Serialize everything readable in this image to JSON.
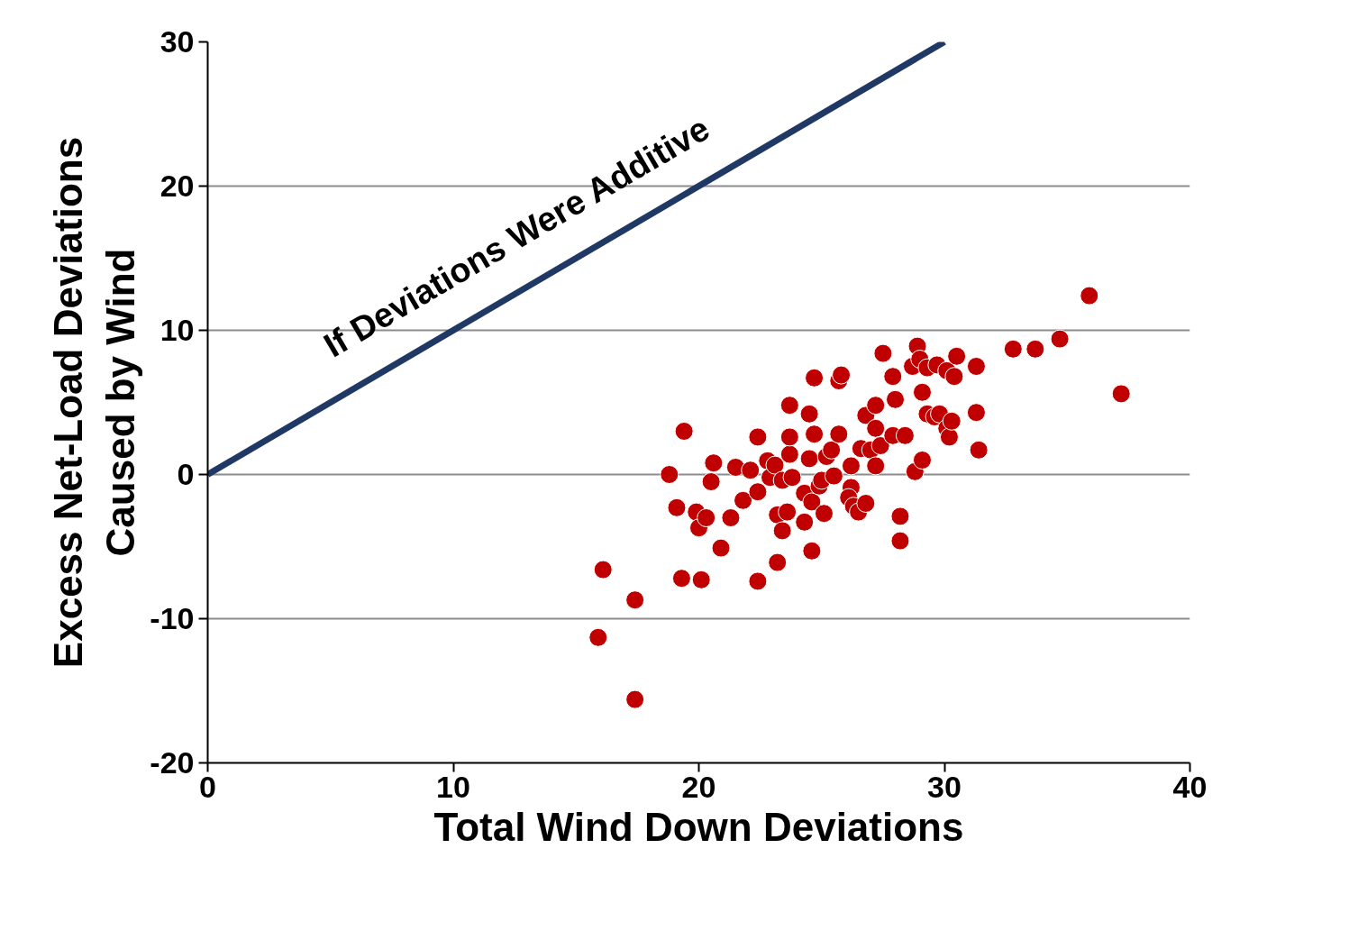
{
  "chart_data": {
    "type": "scatter",
    "xlabel": "Total Wind Down Deviations",
    "ylabel": "Excess Net-Load Deviations\nCaused by Wind",
    "xlim": [
      0,
      40
    ],
    "xticks": [
      0,
      10,
      20,
      30,
      40
    ],
    "ylim": [
      -20,
      30
    ],
    "yticks": [
      -20,
      -10,
      0,
      10,
      20,
      30
    ],
    "grid": "y",
    "annotations": [
      "If Deviations Were Additive"
    ],
    "series": [
      {
        "type": "line",
        "color": "#1f3864",
        "x": [
          0,
          30
        ],
        "values": [
          0,
          30
        ]
      },
      {
        "color": "#c00000",
        "marker": "circle",
        "x": [
          15.9,
          16.1,
          17.4,
          17.4,
          18.8,
          19.4,
          19.1,
          19.3,
          19.9,
          20.1,
          20.0,
          20.3,
          20.5,
          20.6,
          20.9,
          21.3,
          21.5,
          21.8,
          22.1,
          22.4,
          22.4,
          22.4,
          22.8,
          22.9,
          23.1,
          23.2,
          23.2,
          23.4,
          23.4,
          23.6,
          23.7,
          23.7,
          23.7,
          23.8,
          24.3,
          24.3,
          24.5,
          24.5,
          24.6,
          24.6,
          24.7,
          24.7,
          24.9,
          25.0,
          25.1,
          25.2,
          25.4,
          25.5,
          25.7,
          25.8,
          25.7,
          26.2,
          26.2,
          26.1,
          26.3,
          26.5,
          26.6,
          26.8,
          26.8,
          27.0,
          27.2,
          27.2,
          27.2,
          27.4,
          27.5,
          27.9,
          28.0,
          27.9,
          28.2,
          28.2,
          28.4,
          28.7,
          28.8,
          28.9,
          29.0,
          29.1,
          29.1,
          29.3,
          29.3,
          29.7,
          29.6,
          29.8,
          30.1,
          30.2,
          30.1,
          30.4,
          30.3,
          30.5,
          31.3,
          31.3,
          31.4,
          32.8,
          33.7,
          34.7,
          35.9,
          37.2
        ],
        "values": [
          -11.3,
          -6.6,
          -8.7,
          -15.6,
          0.0,
          3.0,
          -2.3,
          -7.2,
          -2.6,
          -7.3,
          -3.7,
          -3.0,
          -0.5,
          0.8,
          -5.1,
          -3.0,
          0.5,
          -1.8,
          0.3,
          2.6,
          -1.2,
          -7.4,
          0.95,
          -0.2,
          0.65,
          -6.1,
          -2.8,
          -3.9,
          -0.4,
          -2.6,
          1.4,
          2.6,
          4.8,
          -0.2,
          -3.3,
          -1.3,
          1.1,
          4.2,
          -5.3,
          -1.9,
          6.7,
          2.8,
          -0.8,
          -0.4,
          -2.7,
          1.25,
          1.7,
          -0.1,
          6.5,
          6.9,
          2.8,
          -0.9,
          0.6,
          -1.6,
          -2.2,
          -2.6,
          1.8,
          4.1,
          -2.0,
          1.7,
          4.8,
          3.2,
          0.6,
          2.0,
          8.4,
          6.8,
          5.2,
          2.7,
          -2.9,
          -4.6,
          2.7,
          7.5,
          0.2,
          8.9,
          8.0,
          1.0,
          5.7,
          7.4,
          4.2,
          7.6,
          4.0,
          4.2,
          3.2,
          2.6,
          7.2,
          6.8,
          3.7,
          8.2,
          7.5,
          4.3,
          1.7,
          8.7,
          8.7,
          9.4,
          12.4,
          5.6
        ]
      }
    ]
  }
}
